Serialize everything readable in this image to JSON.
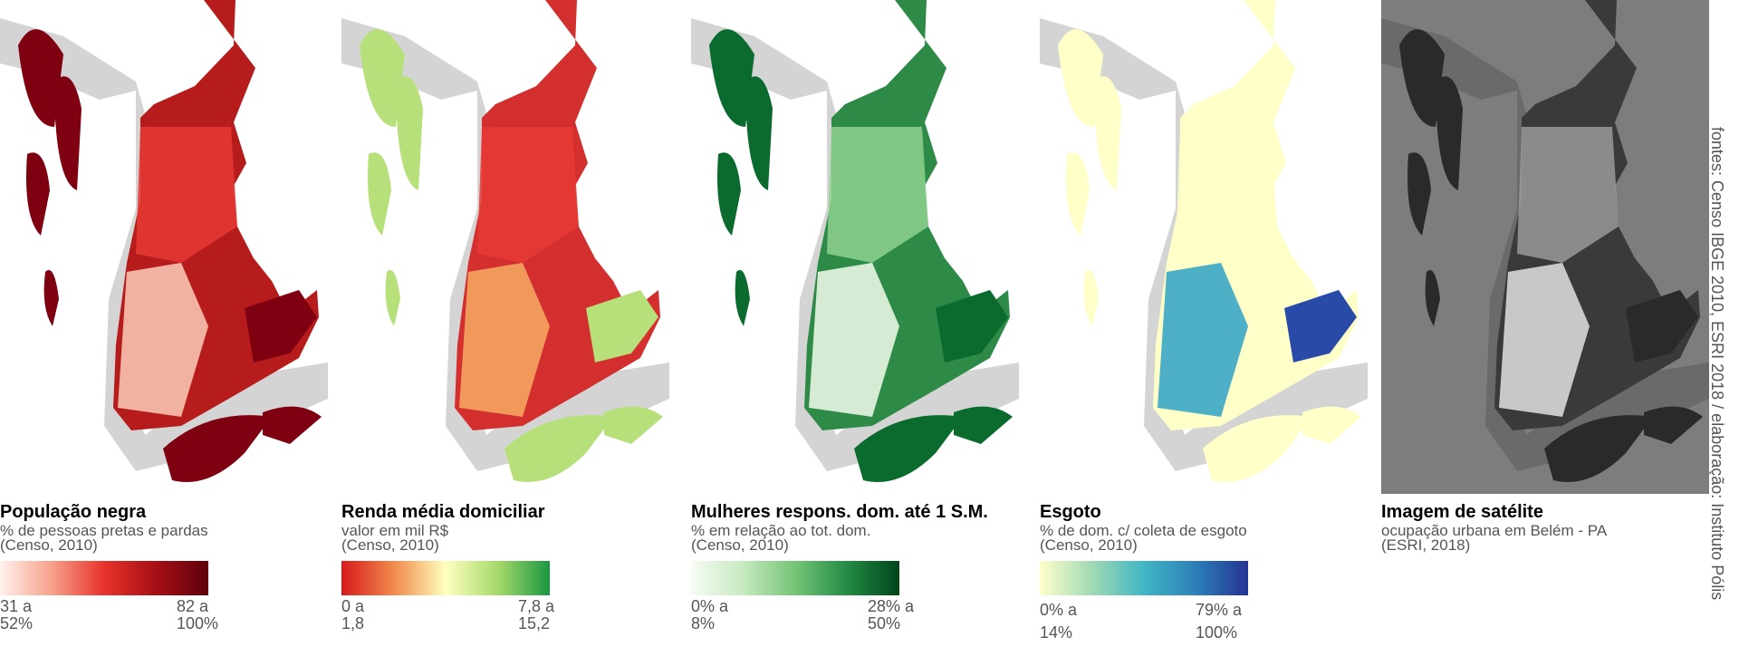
{
  "panels": [
    {
      "title": "População negra",
      "subtitle": "% de pessoas pretas e pardas",
      "source": "(Censo, 2010)",
      "legend_min": [
        "31 a",
        "52%"
      ],
      "legend_max": [
        "82 a",
        "100%"
      ]
    },
    {
      "title": "Renda média domiciliar",
      "subtitle": "valor em mil R$",
      "source": "(Censo, 2010)",
      "legend_min": [
        "0 a",
        "1,8"
      ],
      "legend_max": [
        "7,8 a",
        "15,2"
      ]
    },
    {
      "title": "Mulheres respons. dom. até 1 S.M.",
      "subtitle": "% em relação ao tot. dom.",
      "source": "(Censo, 2010)",
      "legend_min": [
        "0% a",
        "8%"
      ],
      "legend_max": [
        "28% a",
        "50%"
      ]
    },
    {
      "title": "Esgoto",
      "subtitle": "% de dom. c/ coleta de esgoto",
      "source": "(Censo, 2010)",
      "legend_min": [
        "0% a",
        "14%"
      ],
      "legend_max": [
        "79% a",
        "100%"
      ]
    },
    {
      "title": "Imagem de satélite",
      "subtitle": "ocupação urbana em Belém - PA",
      "source": "(ESRI, 2018)"
    }
  ],
  "credits": "fontes: Censo IBGE 2010, ESRI 2018 / elaboração: Instituto Pólis"
}
